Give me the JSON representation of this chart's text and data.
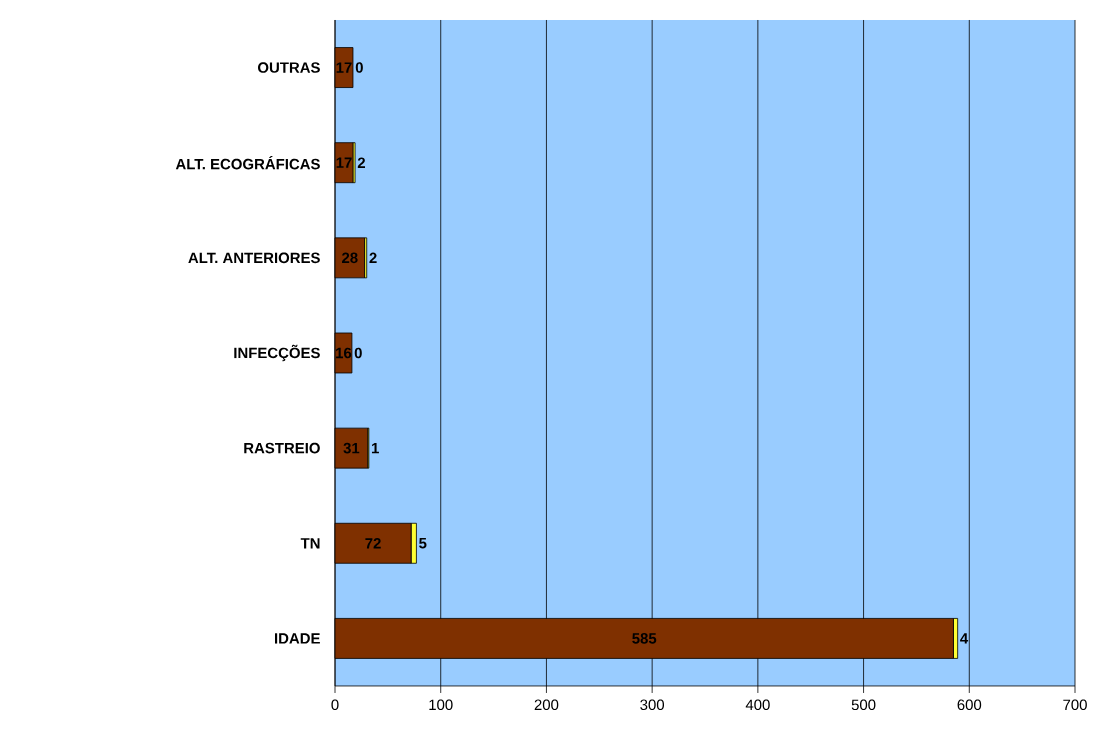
{
  "chart_data": {
    "type": "bar",
    "orientation": "horizontal",
    "stacked": true,
    "categories": [
      "OUTRAS",
      "ALT. ECOGRÁFICAS",
      "ALT. ANTERIORES",
      "INFECÇÕES",
      "RASTREIO",
      "TN",
      "IDADE"
    ],
    "series": [
      {
        "color": "#7f3000",
        "values": [
          17,
          17,
          28,
          16,
          31,
          72,
          585
        ]
      },
      {
        "color": "#ffff33",
        "values": [
          0,
          2,
          2,
          0,
          1,
          5,
          4
        ]
      }
    ],
    "xlim": [
      0,
      700
    ],
    "xticks": [
      0,
      100,
      200,
      300,
      400,
      500,
      600,
      700
    ],
    "grid": "x",
    "data_labels": true
  }
}
